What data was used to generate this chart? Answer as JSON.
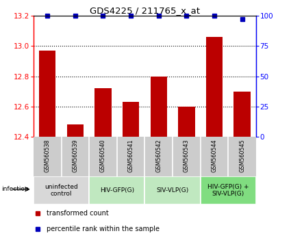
{
  "title": "GDS4225 / 211765_x_at",
  "samples": [
    "GSM560538",
    "GSM560539",
    "GSM560540",
    "GSM560541",
    "GSM560542",
    "GSM560543",
    "GSM560544",
    "GSM560545"
  ],
  "bar_values": [
    12.97,
    12.48,
    12.72,
    12.63,
    12.8,
    12.6,
    13.06,
    12.7
  ],
  "percentile_values": [
    100,
    100,
    100,
    100,
    100,
    100,
    100,
    97
  ],
  "ylim_left": [
    12.4,
    13.2
  ],
  "ylim_right": [
    0,
    100
  ],
  "yticks_left": [
    12.4,
    12.6,
    12.8,
    13.0,
    13.2
  ],
  "yticks_right": [
    0,
    25,
    50,
    75,
    100
  ],
  "bar_color": "#BB0000",
  "dot_color": "#0000BB",
  "bar_width": 0.6,
  "groups": [
    {
      "label": "uninfected\ncontrol",
      "start": 0,
      "end": 2,
      "color": "#D8D8D8"
    },
    {
      "label": "HIV-GFP(G)",
      "start": 2,
      "end": 4,
      "color": "#C0E8C0"
    },
    {
      "label": "SIV-VLP(G)",
      "start": 4,
      "end": 6,
      "color": "#C0E8C0"
    },
    {
      "label": "HIV-GFP(G) +\nSIV-VLP(G)",
      "start": 6,
      "end": 8,
      "color": "#80DD80"
    }
  ],
  "infection_label": "infection",
  "legend_red_label": "transformed count",
  "legend_blue_label": "percentile rank within the sample",
  "sample_box_color": "#CCCCCC",
  "gridline_ticks": [
    12.6,
    12.8,
    13.0
  ]
}
